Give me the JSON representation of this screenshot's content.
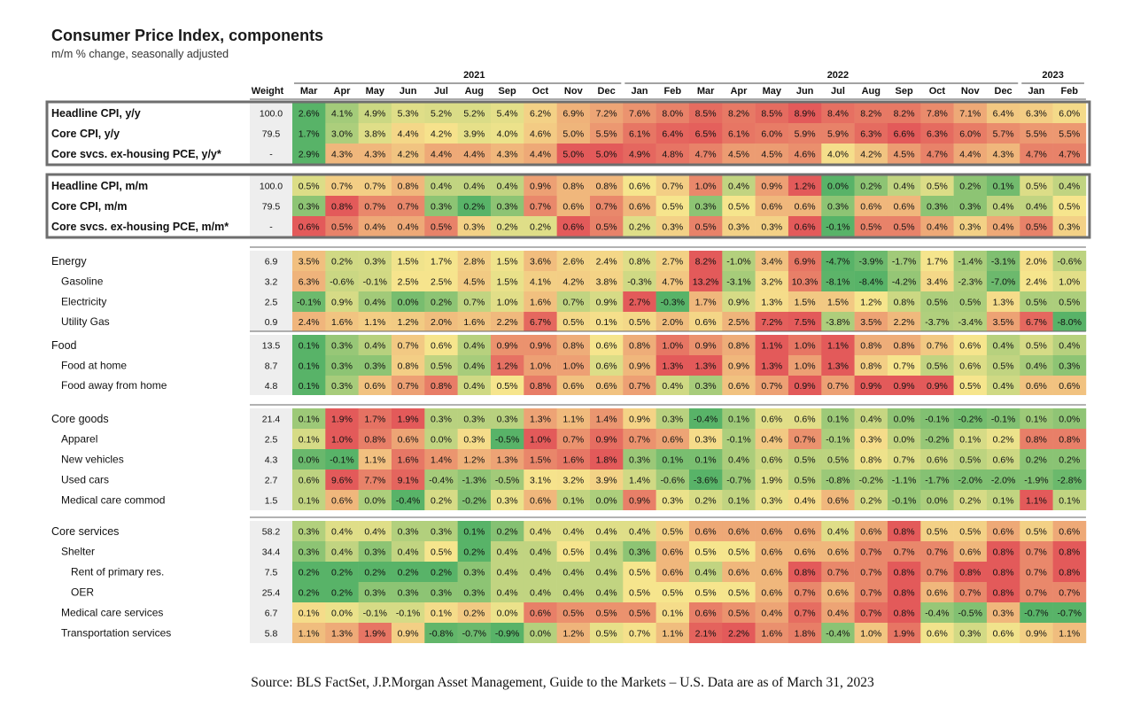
{
  "title": "Consumer Price Index, components",
  "subtitle": "m/m % change, seasonally adjusted",
  "source": "Source: BLS FactSet, J.P.Morgan Asset Management, Guide to the Markets – U.S. Data are as of March 31, 2023",
  "chart_data": {
    "type": "heatmap",
    "title": "Consumer Price Index, components",
    "subtitle": "m/m % change, seasonally adjusted",
    "weight_label": "Weight",
    "year_labels": [
      {
        "label": "2021",
        "from": "Mar",
        "to": "Dec"
      },
      {
        "label": "2022",
        "from": "Jan",
        "to": "Dec"
      },
      {
        "label": "2023",
        "from": "Jan",
        "to": "Feb"
      }
    ],
    "months": [
      "Mar",
      "Apr",
      "May",
      "Jun",
      "Jul",
      "Aug",
      "Sep",
      "Oct",
      "Nov",
      "Dec",
      "Jan",
      "Feb",
      "Mar",
      "Apr",
      "May",
      "Jun",
      "Jul",
      "Aug",
      "Sep",
      "Oct",
      "Nov",
      "Dec",
      "Jan",
      "Feb"
    ],
    "color_scale": {
      "low": "#58b368",
      "mid": "#f6e58d",
      "high": "#e35a5a"
    },
    "groups": [
      {
        "boxed": true,
        "rows": [
          {
            "label": "Headline CPI, y/y",
            "weight": "100.0",
            "values": [
              "2.6%",
              "4.1%",
              "4.9%",
              "5.3%",
              "5.2%",
              "5.2%",
              "5.4%",
              "6.2%",
              "6.9%",
              "7.2%",
              "7.6%",
              "8.0%",
              "8.5%",
              "8.2%",
              "8.5%",
              "8.9%",
              "8.4%",
              "8.2%",
              "8.2%",
              "7.8%",
              "7.1%",
              "6.4%",
              "6.3%",
              "6.0%"
            ]
          },
          {
            "label": "Core CPI, y/y",
            "weight": "79.5",
            "values": [
              "1.7%",
              "3.0%",
              "3.8%",
              "4.4%",
              "4.2%",
              "3.9%",
              "4.0%",
              "4.6%",
              "5.0%",
              "5.5%",
              "6.1%",
              "6.4%",
              "6.5%",
              "6.1%",
              "6.0%",
              "5.9%",
              "5.9%",
              "6.3%",
              "6.6%",
              "6.3%",
              "6.0%",
              "5.7%",
              "5.5%",
              "5.5%"
            ]
          },
          {
            "label": "Core svcs. ex-housing PCE, y/y*",
            "weight": "-",
            "values": [
              "2.9%",
              "4.3%",
              "4.3%",
              "4.2%",
              "4.4%",
              "4.4%",
              "4.3%",
              "4.4%",
              "5.0%",
              "5.0%",
              "4.9%",
              "4.8%",
              "4.7%",
              "4.5%",
              "4.5%",
              "4.6%",
              "4.0%",
              "4.2%",
              "4.5%",
              "4.7%",
              "4.4%",
              "4.3%",
              "4.7%",
              "4.7%"
            ]
          }
        ]
      },
      {
        "boxed": true,
        "rows": [
          {
            "label": "Headline CPI, m/m",
            "weight": "100.0",
            "values": [
              "0.5%",
              "0.7%",
              "0.7%",
              "0.8%",
              "0.4%",
              "0.4%",
              "0.4%",
              "0.9%",
              "0.8%",
              "0.8%",
              "0.6%",
              "0.7%",
              "1.0%",
              "0.4%",
              "0.9%",
              "1.2%",
              "0.0%",
              "0.2%",
              "0.4%",
              "0.5%",
              "0.2%",
              "0.1%",
              "0.5%",
              "0.4%"
            ]
          },
          {
            "label": "Core CPI, m/m",
            "weight": "79.5",
            "values": [
              "0.3%",
              "0.8%",
              "0.7%",
              "0.7%",
              "0.3%",
              "0.2%",
              "0.3%",
              "0.7%",
              "0.6%",
              "0.7%",
              "0.6%",
              "0.5%",
              "0.3%",
              "0.5%",
              "0.6%",
              "0.6%",
              "0.3%",
              "0.6%",
              "0.6%",
              "0.3%",
              "0.3%",
              "0.4%",
              "0.4%",
              "0.5%"
            ]
          },
          {
            "label": "Core svcs. ex-housing PCE, m/m*",
            "weight": "-",
            "values": [
              "0.6%",
              "0.5%",
              "0.4%",
              "0.4%",
              "0.5%",
              "0.3%",
              "0.2%",
              "0.2%",
              "0.6%",
              "0.5%",
              "0.2%",
              "0.3%",
              "0.5%",
              "0.3%",
              "0.3%",
              "0.6%",
              "-0.1%",
              "0.5%",
              "0.5%",
              "0.4%",
              "0.3%",
              "0.4%",
              "0.5%",
              "0.3%"
            ]
          }
        ]
      },
      {
        "boxed": false,
        "rows": [
          {
            "label": "Energy",
            "indent": 0,
            "weight": "6.9",
            "values": [
              "3.5%",
              "0.2%",
              "0.3%",
              "1.5%",
              "1.7%",
              "2.8%",
              "1.5%",
              "3.6%",
              "2.6%",
              "2.4%",
              "0.8%",
              "2.7%",
              "8.2%",
              "-1.0%",
              "3.4%",
              "6.9%",
              "-4.7%",
              "-3.9%",
              "-1.7%",
              "1.7%",
              "-1.4%",
              "-3.1%",
              "2.0%",
              "-0.6%"
            ]
          },
          {
            "label": "Gasoline",
            "indent": 1,
            "weight": "3.2",
            "values": [
              "6.3%",
              "-0.6%",
              "-0.1%",
              "2.5%",
              "2.5%",
              "4.5%",
              "1.5%",
              "4.1%",
              "4.2%",
              "3.8%",
              "-0.3%",
              "4.7%",
              "13.2%",
              "-3.1%",
              "3.2%",
              "10.3%",
              "-8.1%",
              "-8.4%",
              "-4.2%",
              "3.4%",
              "-2.3%",
              "-7.0%",
              "2.4%",
              "1.0%"
            ]
          },
          {
            "label": "Electricity",
            "indent": 1,
            "weight": "2.5",
            "values": [
              "-0.1%",
              "0.9%",
              "0.4%",
              "0.0%",
              "0.2%",
              "0.7%",
              "1.0%",
              "1.6%",
              "0.7%",
              "0.9%",
              "2.7%",
              "-0.3%",
              "1.7%",
              "0.9%",
              "1.3%",
              "1.5%",
              "1.5%",
              "1.2%",
              "0.8%",
              "0.5%",
              "0.5%",
              "1.3%",
              "0.5%",
              "0.5%"
            ]
          },
          {
            "label": "Utility Gas",
            "indent": 1,
            "weight": "0.9",
            "values": [
              "2.4%",
              "1.6%",
              "1.1%",
              "1.2%",
              "2.0%",
              "1.6%",
              "2.2%",
              "6.7%",
              "0.5%",
              "0.1%",
              "0.5%",
              "2.0%",
              "0.6%",
              "2.5%",
              "7.2%",
              "7.5%",
              "-3.8%",
              "3.5%",
              "2.2%",
              "-3.7%",
              "-3.4%",
              "3.5%",
              "6.7%",
              "-8.0%"
            ]
          }
        ]
      },
      {
        "boxed": false,
        "rows": [
          {
            "label": "Food",
            "indent": 0,
            "weight": "13.5",
            "values": [
              "0.1%",
              "0.3%",
              "0.4%",
              "0.7%",
              "0.6%",
              "0.4%",
              "0.9%",
              "0.9%",
              "0.8%",
              "0.6%",
              "0.8%",
              "1.0%",
              "0.9%",
              "0.8%",
              "1.1%",
              "1.0%",
              "1.1%",
              "0.8%",
              "0.8%",
              "0.7%",
              "0.6%",
              "0.4%",
              "0.5%",
              "0.4%"
            ]
          },
          {
            "label": "Food at home",
            "indent": 1,
            "weight": "8.7",
            "values": [
              "0.1%",
              "0.3%",
              "0.3%",
              "0.8%",
              "0.5%",
              "0.4%",
              "1.2%",
              "1.0%",
              "1.0%",
              "0.6%",
              "0.9%",
              "1.3%",
              "1.3%",
              "0.9%",
              "1.3%",
              "1.0%",
              "1.3%",
              "0.8%",
              "0.7%",
              "0.5%",
              "0.6%",
              "0.5%",
              "0.4%",
              "0.3%"
            ]
          },
          {
            "label": "Food away from home",
            "indent": 1,
            "weight": "4.8",
            "values": [
              "0.1%",
              "0.3%",
              "0.6%",
              "0.7%",
              "0.8%",
              "0.4%",
              "0.5%",
              "0.8%",
              "0.6%",
              "0.6%",
              "0.7%",
              "0.4%",
              "0.3%",
              "0.6%",
              "0.7%",
              "0.9%",
              "0.7%",
              "0.9%",
              "0.9%",
              "0.9%",
              "0.5%",
              "0.4%",
              "0.6%",
              "0.6%"
            ]
          }
        ]
      },
      {
        "boxed": false,
        "rows": [
          {
            "label": "Core goods",
            "indent": 0,
            "weight": "21.4",
            "values": [
              "0.1%",
              "1.9%",
              "1.7%",
              "1.9%",
              "0.3%",
              "0.3%",
              "0.3%",
              "1.3%",
              "1.1%",
              "1.4%",
              "0.9%",
              "0.3%",
              "-0.4%",
              "0.1%",
              "0.6%",
              "0.6%",
              "0.1%",
              "0.4%",
              "0.0%",
              "-0.1%",
              "-0.2%",
              "-0.1%",
              "0.1%",
              "0.0%"
            ]
          },
          {
            "label": "Apparel",
            "indent": 1,
            "weight": "2.5",
            "values": [
              "0.1%",
              "1.0%",
              "0.8%",
              "0.6%",
              "0.0%",
              "0.3%",
              "-0.5%",
              "1.0%",
              "0.7%",
              "0.9%",
              "0.7%",
              "0.6%",
              "0.3%",
              "-0.1%",
              "0.4%",
              "0.7%",
              "-0.1%",
              "0.3%",
              "0.0%",
              "-0.2%",
              "0.1%",
              "0.2%",
              "0.8%",
              "0.8%"
            ]
          },
          {
            "label": "New vehicles",
            "indent": 1,
            "weight": "4.3",
            "values": [
              "0.0%",
              "-0.1%",
              "1.1%",
              "1.6%",
              "1.4%",
              "1.2%",
              "1.3%",
              "1.5%",
              "1.6%",
              "1.8%",
              "0.3%",
              "0.1%",
              "0.1%",
              "0.4%",
              "0.6%",
              "0.5%",
              "0.5%",
              "0.8%",
              "0.7%",
              "0.6%",
              "0.5%",
              "0.6%",
              "0.2%",
              "0.2%"
            ]
          },
          {
            "label": "Used cars",
            "indent": 1,
            "weight": "2.7",
            "values": [
              "0.6%",
              "9.6%",
              "7.7%",
              "9.1%",
              "-0.4%",
              "-1.3%",
              "-0.5%",
              "3.1%",
              "3.2%",
              "3.9%",
              "1.4%",
              "-0.6%",
              "-3.6%",
              "-0.7%",
              "1.9%",
              "0.5%",
              "-0.8%",
              "-0.2%",
              "-1.1%",
              "-1.7%",
              "-2.0%",
              "-2.0%",
              "-1.9%",
              "-2.8%"
            ]
          },
          {
            "label": "Medical care commod",
            "indent": 1,
            "weight": "1.5",
            "values": [
              "0.1%",
              "0.6%",
              "0.0%",
              "-0.4%",
              "0.2%",
              "-0.2%",
              "0.3%",
              "0.6%",
              "0.1%",
              "0.0%",
              "0.9%",
              "0.3%",
              "0.2%",
              "0.1%",
              "0.3%",
              "0.4%",
              "0.6%",
              "0.2%",
              "-0.1%",
              "0.0%",
              "0.2%",
              "0.1%",
              "1.1%",
              "0.1%"
            ]
          }
        ]
      },
      {
        "boxed": false,
        "rows": [
          {
            "label": "Core services",
            "indent": 0,
            "weight": "58.2",
            "values": [
              "0.3%",
              "0.4%",
              "0.4%",
              "0.3%",
              "0.3%",
              "0.1%",
              "0.2%",
              "0.4%",
              "0.4%",
              "0.4%",
              "0.4%",
              "0.5%",
              "0.6%",
              "0.6%",
              "0.6%",
              "0.6%",
              "0.4%",
              "0.6%",
              "0.8%",
              "0.5%",
              "0.5%",
              "0.6%",
              "0.5%",
              "0.6%"
            ]
          },
          {
            "label": "Shelter",
            "indent": 1,
            "weight": "34.4",
            "values": [
              "0.3%",
              "0.4%",
              "0.3%",
              "0.4%",
              "0.5%",
              "0.2%",
              "0.4%",
              "0.4%",
              "0.5%",
              "0.4%",
              "0.3%",
              "0.6%",
              "0.5%",
              "0.5%",
              "0.6%",
              "0.6%",
              "0.6%",
              "0.7%",
              "0.7%",
              "0.7%",
              "0.6%",
              "0.8%",
              "0.7%",
              "0.8%"
            ]
          },
          {
            "label": "Rent of primary res.",
            "indent": 2,
            "weight": "7.5",
            "values": [
              "0.2%",
              "0.2%",
              "0.2%",
              "0.2%",
              "0.2%",
              "0.3%",
              "0.4%",
              "0.4%",
              "0.4%",
              "0.4%",
              "0.5%",
              "0.6%",
              "0.4%",
              "0.6%",
              "0.6%",
              "0.8%",
              "0.7%",
              "0.7%",
              "0.8%",
              "0.7%",
              "0.8%",
              "0.8%",
              "0.7%",
              "0.8%"
            ]
          },
          {
            "label": "OER",
            "indent": 2,
            "weight": "25.4",
            "values": [
              "0.2%",
              "0.2%",
              "0.3%",
              "0.3%",
              "0.3%",
              "0.3%",
              "0.4%",
              "0.4%",
              "0.4%",
              "0.4%",
              "0.5%",
              "0.5%",
              "0.5%",
              "0.5%",
              "0.6%",
              "0.7%",
              "0.6%",
              "0.7%",
              "0.8%",
              "0.6%",
              "0.7%",
              "0.8%",
              "0.7%",
              "0.7%"
            ]
          },
          {
            "label": "Medical care services",
            "indent": 1,
            "weight": "6.7",
            "values": [
              "0.1%",
              "0.0%",
              "-0.1%",
              "-0.1%",
              "0.1%",
              "0.2%",
              "0.0%",
              "0.6%",
              "0.5%",
              "0.5%",
              "0.5%",
              "0.1%",
              "0.6%",
              "0.5%",
              "0.4%",
              "0.7%",
              "0.4%",
              "0.7%",
              "0.8%",
              "-0.4%",
              "-0.5%",
              "0.3%",
              "-0.7%",
              "-0.7%"
            ]
          },
          {
            "label": "Transportation services",
            "indent": 1,
            "weight": "5.8",
            "values": [
              "1.1%",
              "1.3%",
              "1.9%",
              "0.9%",
              "-0.8%",
              "-0.7%",
              "-0.9%",
              "0.0%",
              "1.2%",
              "0.5%",
              "0.7%",
              "1.1%",
              "2.1%",
              "2.2%",
              "1.6%",
              "1.8%",
              "-0.4%",
              "1.0%",
              "1.9%",
              "0.6%",
              "0.3%",
              "0.6%",
              "0.9%",
              "1.1%"
            ]
          }
        ]
      }
    ]
  }
}
